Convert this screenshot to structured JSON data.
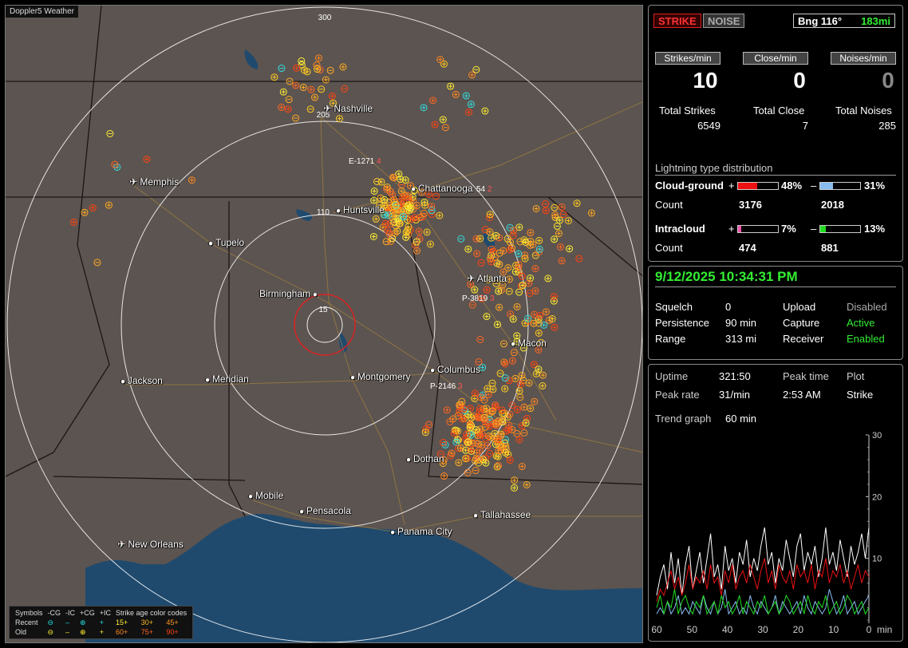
{
  "app": {
    "title": "Doppler5 Weather"
  },
  "map": {
    "range_labels": [
      "300",
      "205",
      "110",
      "15"
    ],
    "cities": [
      {
        "name": "Nashville",
        "airport": true
      },
      {
        "name": "Memphis",
        "airport": true
      },
      {
        "name": "Chattanooga",
        "airport": false
      },
      {
        "name": "Huntsville",
        "airport": false
      },
      {
        "name": "Tupelo",
        "airport": false
      },
      {
        "name": "Atlanta",
        "airport": true
      },
      {
        "name": "Birmingham",
        "airport": false
      },
      {
        "name": "Macon",
        "airport": false
      },
      {
        "name": "Jackson",
        "airport": false
      },
      {
        "name": "Meridian",
        "airport": false
      },
      {
        "name": "Montgomery",
        "airport": false
      },
      {
        "name": "Columbus",
        "airport": false
      },
      {
        "name": "Dothan",
        "airport": false
      },
      {
        "name": "Mobile",
        "airport": false
      },
      {
        "name": "Pensacola",
        "airport": false
      },
      {
        "name": "Tallahassee",
        "airport": false
      },
      {
        "name": "Panama City",
        "airport": false
      },
      {
        "name": "New Orleans",
        "airport": true
      }
    ],
    "markers": [
      {
        "label": "E-1271",
        "value": "4"
      },
      {
        "label": "54",
        "value": "2"
      },
      {
        "label": "P-3819",
        "value": "3"
      },
      {
        "label": "P-2146",
        "value": "3"
      }
    ],
    "colors": {
      "land": "#5c5450",
      "water": "#1f4a6e",
      "ring": "#ffffff",
      "center_ring": "#dd2222",
      "roads": "#b8903a"
    }
  },
  "legend": {
    "symbols_label": "Symbols",
    "col_neg_cg": "-CG",
    "col_neg_ic": "-IC",
    "col_pos_cg": "+CG",
    "col_pos_ic": "+IC",
    "age_label": "Strike age color codes",
    "recent_label": "Recent",
    "old_label": "Old",
    "recent_ages": [
      "15+",
      "30+",
      "45+"
    ],
    "old_ages": [
      "60+",
      "75+",
      "90+"
    ]
  },
  "status": {
    "strike_tab": "STRIKE",
    "noise_tab": "NOISE",
    "bearing": "Bng 116°",
    "distance": "183mi",
    "strikes_per_min_label": "Strikes/min",
    "close_per_min_label": "Close/min",
    "noises_per_min_label": "Noises/min",
    "strikes_per_min": "10",
    "close_per_min": "0",
    "noises_per_min": "0",
    "total_strikes_label": "Total Strikes",
    "total_close_label": "Total Close",
    "total_noises_label": "Total Noises",
    "total_strikes": "6549",
    "total_close": "7",
    "total_noises": "285"
  },
  "distribution": {
    "title": "Lightning type distribution",
    "cloud_ground_label": "Cloud-ground",
    "intracloud_label": "Intracloud",
    "count_label": "Count",
    "plus": "+",
    "minus": "–",
    "cg_pos_pct": "48%",
    "cg_neg_pct": "31%",
    "cg_pos_count": "3176",
    "cg_neg_count": "2018",
    "ic_pos_pct": "7%",
    "ic_neg_pct": "13%",
    "ic_pos_count": "474",
    "ic_neg_count": "881",
    "cg_pos_frac": 0.48,
    "cg_neg_frac": 0.31,
    "ic_pos_frac": 0.07,
    "ic_neg_frac": 0.13,
    "colors": {
      "cg_pos": "#ee1111",
      "cg_neg": "#88bbee",
      "ic_pos": "#ee55aa",
      "ic_neg": "#22dd22"
    }
  },
  "settings": {
    "datetime": "9/12/2025 10:34:31 PM",
    "squelch_label": "Squelch",
    "squelch": "0",
    "persistence_label": "Persistence",
    "persistence": "90 min",
    "range_label": "Range",
    "range": "313 mi",
    "upload_label": "Upload",
    "upload": "Disabled",
    "capture_label": "Capture",
    "capture": "Active",
    "receiver_label": "Receiver",
    "receiver": "Enabled"
  },
  "stats": {
    "uptime_label": "Uptime",
    "uptime": "321:50",
    "peak_time_label": "Peak time",
    "peak_time": "2:53 AM",
    "plot_label": "Plot",
    "plot": "Strike",
    "peak_rate_label": "Peak rate",
    "peak_rate": "31/min",
    "trend_label": "Trend graph",
    "trend": "60 min"
  },
  "chart_data": {
    "type": "line",
    "x_ticks": [
      "60",
      "50",
      "40",
      "30",
      "20",
      "10",
      "0"
    ],
    "x_unit": "min",
    "y_ticks": [
      "30",
      "20",
      "10"
    ],
    "ylim": [
      0,
      30
    ],
    "xlim": [
      60,
      0
    ],
    "series": [
      {
        "color": "#ffffff",
        "values": [
          4,
          7,
          9,
          5,
          11,
          6,
          10,
          4,
          9,
          12,
          5,
          8,
          11,
          6,
          10,
          14,
          7,
          9,
          5,
          12,
          8,
          10,
          6,
          11,
          9,
          13,
          7,
          10,
          8,
          12,
          15,
          9,
          11,
          6,
          10,
          8,
          13,
          10,
          7,
          12,
          14,
          8,
          11,
          9,
          12,
          7,
          10,
          15,
          9,
          11,
          8,
          13,
          10,
          7,
          12,
          9,
          11,
          14,
          10,
          15
        ]
      },
      {
        "color": "#ee1111",
        "values": [
          3,
          5,
          4,
          6,
          8,
          5,
          7,
          4,
          6,
          9,
          5,
          7,
          6,
          8,
          5,
          9,
          6,
          7,
          4,
          8,
          6,
          9,
          5,
          7,
          8,
          6,
          9,
          7,
          5,
          8,
          10,
          6,
          8,
          5,
          9,
          7,
          6,
          8,
          5,
          9,
          7,
          8,
          6,
          9,
          5,
          8,
          7,
          10,
          6,
          8,
          7,
          9,
          6,
          8,
          5,
          7,
          9,
          6,
          8,
          7
        ]
      },
      {
        "color": "#88bbee",
        "values": [
          1,
          2,
          1,
          3,
          1,
          2,
          4,
          1,
          2,
          1,
          3,
          2,
          1,
          4,
          2,
          1,
          3,
          1,
          2,
          5,
          1,
          2,
          3,
          1,
          2,
          1,
          4,
          2,
          1,
          3,
          2,
          1,
          2,
          4,
          1,
          3,
          2,
          1,
          2,
          3,
          1,
          4,
          2,
          1,
          3,
          2,
          1,
          2,
          5,
          3,
          1,
          2,
          4,
          1,
          2,
          3,
          1,
          2,
          3,
          4
        ]
      },
      {
        "color": "#22dd22",
        "values": [
          2,
          4,
          1,
          3,
          2,
          5,
          1,
          3,
          4,
          2,
          1,
          3,
          2,
          4,
          1,
          2,
          3,
          1,
          4,
          2,
          3,
          1,
          2,
          4,
          1,
          3,
          2,
          1,
          3,
          2,
          4,
          1,
          2,
          3,
          1,
          2,
          4,
          3,
          1,
          2,
          3,
          1,
          4,
          2,
          1,
          3,
          2,
          4,
          1,
          2,
          3,
          1,
          2,
          4,
          3,
          1,
          2,
          3,
          1,
          2
        ]
      }
    ]
  }
}
